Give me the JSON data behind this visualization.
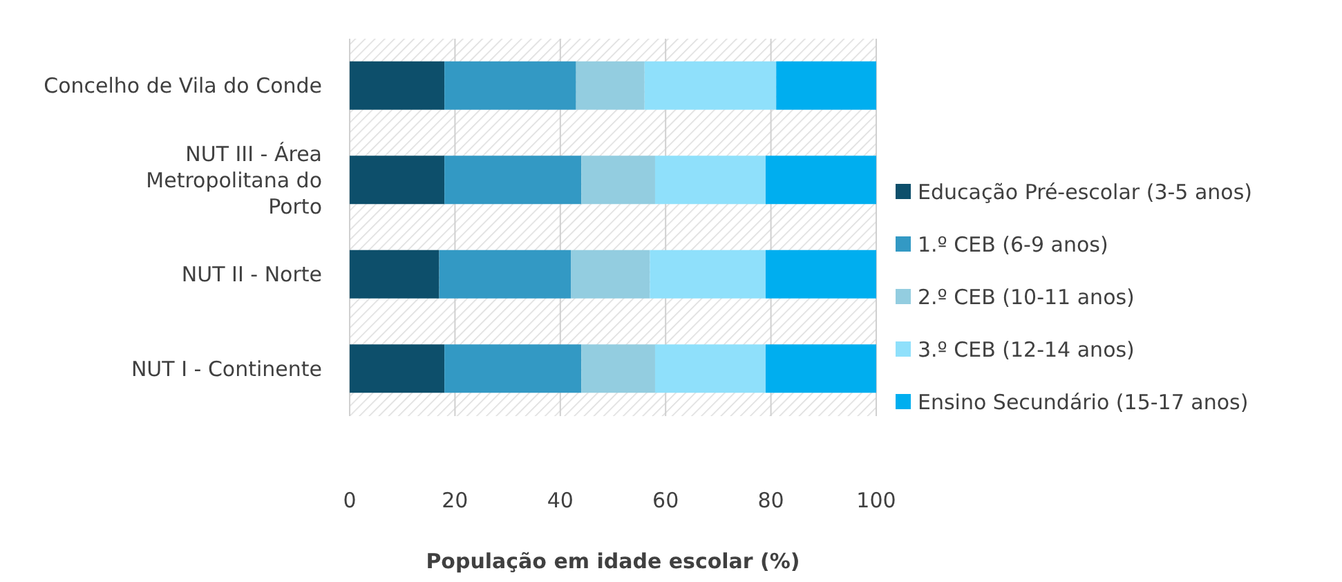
{
  "chart_data": {
    "type": "bar",
    "orientation": "horizontal",
    "stacked": true,
    "xlabel": "População em idade escolar (%)",
    "categories": [
      "Concelho de Vila do Conde",
      "NUT III - Área Metropolitana do Porto",
      "NUT II - Norte",
      "NUT I - Continente"
    ],
    "series": [
      {
        "name": "Educação Pré-escolar (3-5 anos)",
        "color": "#0d4f6b",
        "values": [
          18,
          18,
          17,
          18
        ]
      },
      {
        "name": "1.º CEB (6-9 anos)",
        "color": "#3399c4",
        "values": [
          25,
          26,
          25,
          26
        ]
      },
      {
        "name": "2.º CEB (10-11 anos)",
        "color": "#93cde0",
        "values": [
          13,
          14,
          15,
          14
        ]
      },
      {
        "name": "3.º CEB (12-14 anos)",
        "color": "#8fe0fb",
        "values": [
          25,
          21,
          22,
          21
        ]
      },
      {
        "name": "Ensino Secundário (15-17 anos)",
        "color": "#00aeef",
        "values": [
          19,
          21,
          21,
          21
        ]
      }
    ],
    "xlim": [
      0,
      100
    ],
    "xticks": [
      0,
      20,
      40,
      60,
      80,
      100
    ],
    "grid": "x",
    "legend": "right"
  }
}
